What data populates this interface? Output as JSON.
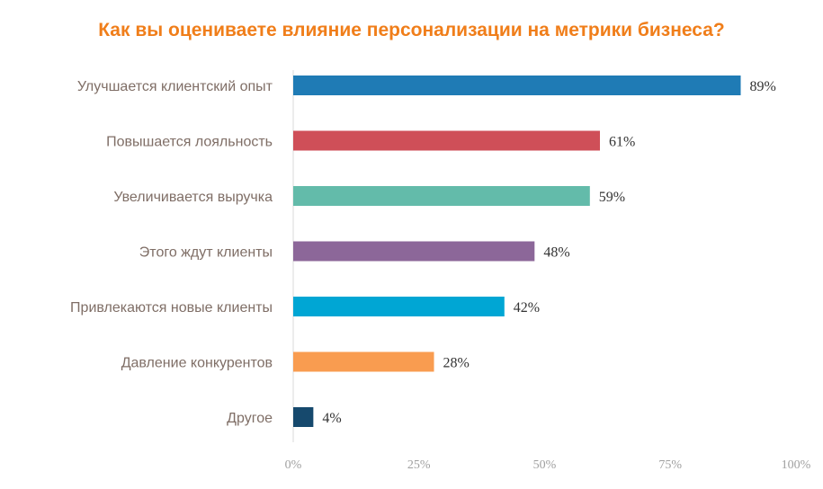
{
  "chart_data": {
    "type": "bar",
    "orientation": "horizontal",
    "title": "Как вы оцениваете влияние персонализации на метрики бизнеса?",
    "categories": [
      "Улучшается клиентский опыт",
      "Повышается лояльность",
      "Увеличивается выручка",
      "Этого ждут клиенты",
      "Привлекаются новые клиенты",
      "Давление конкурентов",
      "Другое"
    ],
    "values": [
      89,
      61,
      59,
      48,
      42,
      28,
      4
    ],
    "value_labels": [
      "89%",
      "61%",
      "59%",
      "48%",
      "42%",
      "28%",
      "4%"
    ],
    "colors": [
      "#1F7BB5",
      "#CF4F58",
      "#63BBAA",
      "#8C6799",
      "#00A6D4",
      "#F99C50",
      "#16496D"
    ],
    "title_color": "#F07E1A",
    "xlim": [
      0,
      100
    ],
    "x_ticks": [
      "0%",
      "25%",
      "50%",
      "75%",
      "100%"
    ],
    "grid": false,
    "legend": "none"
  }
}
